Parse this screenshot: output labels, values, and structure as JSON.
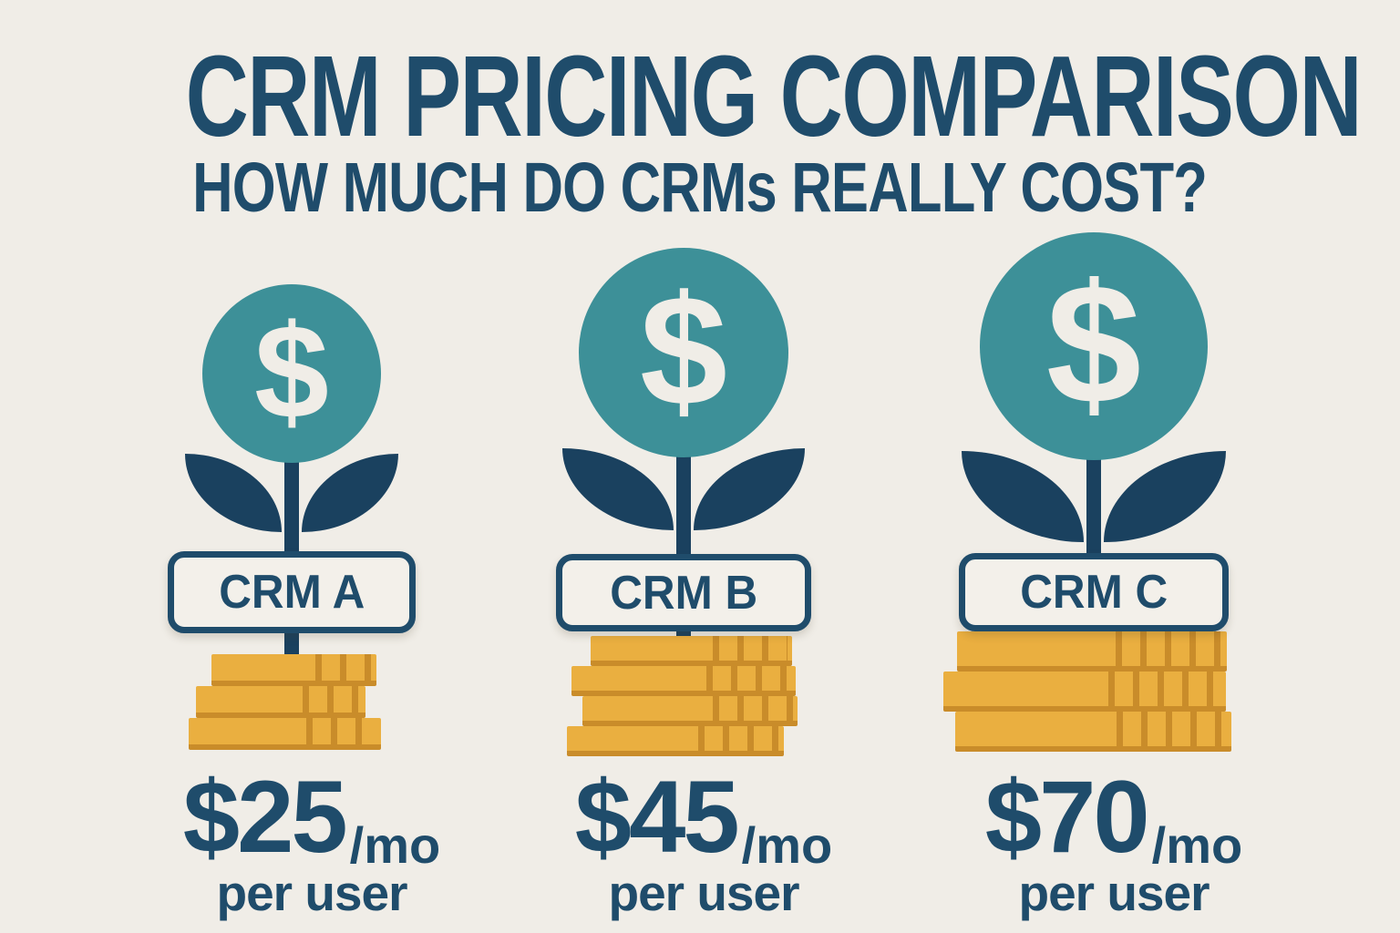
{
  "title": "CRM PRICING COMPARISON",
  "subtitle": "HOW MUCH DO CRMs REALLY COST?",
  "colors": {
    "background": "#f0ede7",
    "navy_text": "#1f4c6b",
    "leaf_stem_navy": "#1a415f",
    "teal_circle": "#3d9098",
    "coin_gold": "#eaaf40",
    "coin_gold_dark": "#c98c2a"
  },
  "columns": [
    {
      "name": "CRM A",
      "coin_symbol": "$",
      "price": "$25",
      "period": "/mo",
      "per_user": "per user",
      "coins": 3
    },
    {
      "name": "CRM B",
      "coin_symbol": "$",
      "price": "$45",
      "period": "/mo",
      "per_user": "per user",
      "coins": 4
    },
    {
      "name": "CRM C",
      "coin_symbol": "$",
      "price": "$70",
      "period": "/mo",
      "per_user": "per user",
      "coins": 3
    }
  ],
  "chart_data": {
    "type": "bar",
    "title": "CRM PRICING COMPARISON",
    "subtitle": "HOW MUCH DO CRMs REALLY COST?",
    "categories": [
      "CRM A",
      "CRM B",
      "CRM C"
    ],
    "values": [
      25,
      45,
      70
    ],
    "unit": "$ per month per user",
    "labels": [
      "$25/mo per user",
      "$45/mo per user",
      "$70/mo per user"
    ],
    "coin_stack_counts": [
      3,
      4,
      3
    ],
    "legend_position": "none",
    "grid": false
  }
}
